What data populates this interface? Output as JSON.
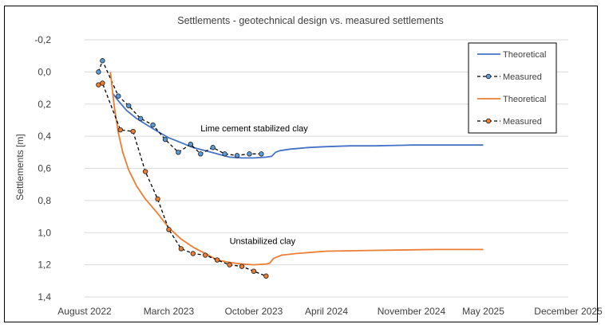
{
  "chart_data": {
    "type": "line",
    "title": "Settlements - geotechnical design vs. measured settlements",
    "xlabel": "",
    "ylabel": "Settlements [m]",
    "y_reversed": true,
    "ylim": [
      -0.2,
      1.4
    ],
    "yticks": [
      "-0,2",
      "0,0",
      "0,2",
      "0,4",
      "0,6",
      "0,8",
      "1,0",
      "1,2",
      "1,4"
    ],
    "xlim": [
      "2022-08-01",
      "2025-12-01"
    ],
    "xticks": [
      {
        "date": "2022-08-01",
        "label": "August 2022"
      },
      {
        "date": "2023-03-01",
        "label": "March 2023"
      },
      {
        "date": "2023-10-01",
        "label": "October 2023"
      },
      {
        "date": "2024-04-01",
        "label": "April 2024"
      },
      {
        "date": "2024-11-01",
        "label": "November 2024"
      },
      {
        "date": "2025-05-01",
        "label": "May 2025"
      },
      {
        "date": "2025-12-01",
        "label": "December 2025"
      }
    ],
    "grid": "horizontal",
    "legend_position": "top-right",
    "annotations": [
      {
        "text": "Lime cement stabilized clay",
        "x": "2023-05-20",
        "y": 0.37
      },
      {
        "text": "Unstabilized clay",
        "x": "2023-08-01",
        "y": 1.07
      }
    ],
    "series": [
      {
        "name": "Theoretical",
        "style": "solid",
        "color": "#4472C4",
        "x": [
          "2022-10-10",
          "2022-10-25",
          "2022-11-15",
          "2022-12-10",
          "2023-01-05",
          "2023-02-01",
          "2023-03-01",
          "2023-04-01",
          "2023-05-01",
          "2023-06-01",
          "2023-07-01",
          "2023-08-01",
          "2023-09-01",
          "2023-10-01",
          "2023-11-01",
          "2023-11-15",
          "2023-11-25",
          "2023-12-05",
          "2024-01-01",
          "2024-02-15",
          "2024-04-01",
          "2024-06-01",
          "2024-08-01",
          "2024-11-01",
          "2025-02-01",
          "2025-05-01"
        ],
        "y": [
          0.13,
          0.18,
          0.24,
          0.29,
          0.33,
          0.37,
          0.41,
          0.44,
          0.47,
          0.49,
          0.51,
          0.53,
          0.535,
          0.535,
          0.53,
          0.525,
          0.5,
          0.49,
          0.48,
          0.47,
          0.465,
          0.46,
          0.46,
          0.455,
          0.455,
          0.455
        ]
      },
      {
        "name": "Measured",
        "style": "dashed",
        "color": "#000000",
        "marker_color": "#5B9BD5",
        "x": [
          "2022-09-05",
          "2022-09-15",
          "2022-10-25",
          "2022-11-20",
          "2022-12-20",
          "2023-01-20",
          "2023-02-20",
          "2023-03-25",
          "2023-04-25",
          "2023-05-20",
          "2023-06-20",
          "2023-07-20",
          "2023-08-20",
          "2023-09-20",
          "2023-10-20"
        ],
        "y": [
          0.0,
          -0.07,
          0.15,
          0.21,
          0.29,
          0.33,
          0.42,
          0.5,
          0.45,
          0.51,
          0.47,
          0.51,
          0.52,
          0.51,
          0.51
        ]
      },
      {
        "name": "Theoretical",
        "style": "solid",
        "color": "#ED7D31",
        "x": [
          "2022-10-05",
          "2022-10-15",
          "2022-10-25",
          "2022-11-05",
          "2022-11-20",
          "2022-12-10",
          "2023-01-01",
          "2023-02-01",
          "2023-03-01",
          "2023-04-01",
          "2023-05-01",
          "2023-06-01",
          "2023-07-01",
          "2023-08-01",
          "2023-09-01",
          "2023-10-01",
          "2023-11-01",
          "2023-11-10",
          "2023-11-20",
          "2023-12-10",
          "2024-01-15",
          "2024-04-01",
          "2024-08-01",
          "2025-01-01",
          "2025-05-01"
        ],
        "y": [
          0.0,
          0.22,
          0.38,
          0.5,
          0.61,
          0.71,
          0.79,
          0.88,
          0.97,
          1.04,
          1.09,
          1.13,
          1.17,
          1.185,
          1.195,
          1.2,
          1.195,
          1.19,
          1.16,
          1.14,
          1.13,
          1.115,
          1.11,
          1.105,
          1.105
        ]
      },
      {
        "name": "Measured",
        "style": "dashed",
        "color": "#000000",
        "marker_color": "#ED7D31",
        "x": [
          "2022-09-05",
          "2022-09-15",
          "2022-10-30",
          "2022-12-01",
          "2023-01-01",
          "2023-02-01",
          "2023-03-01",
          "2023-04-01",
          "2023-05-01",
          "2023-06-01",
          "2023-07-01",
          "2023-08-01",
          "2023-09-01",
          "2023-10-01",
          "2023-11-01"
        ],
        "y": [
          0.08,
          0.07,
          0.36,
          0.37,
          0.62,
          0.79,
          0.98,
          1.1,
          1.13,
          1.14,
          1.17,
          1.2,
          1.21,
          1.24,
          1.27
        ]
      }
    ]
  }
}
